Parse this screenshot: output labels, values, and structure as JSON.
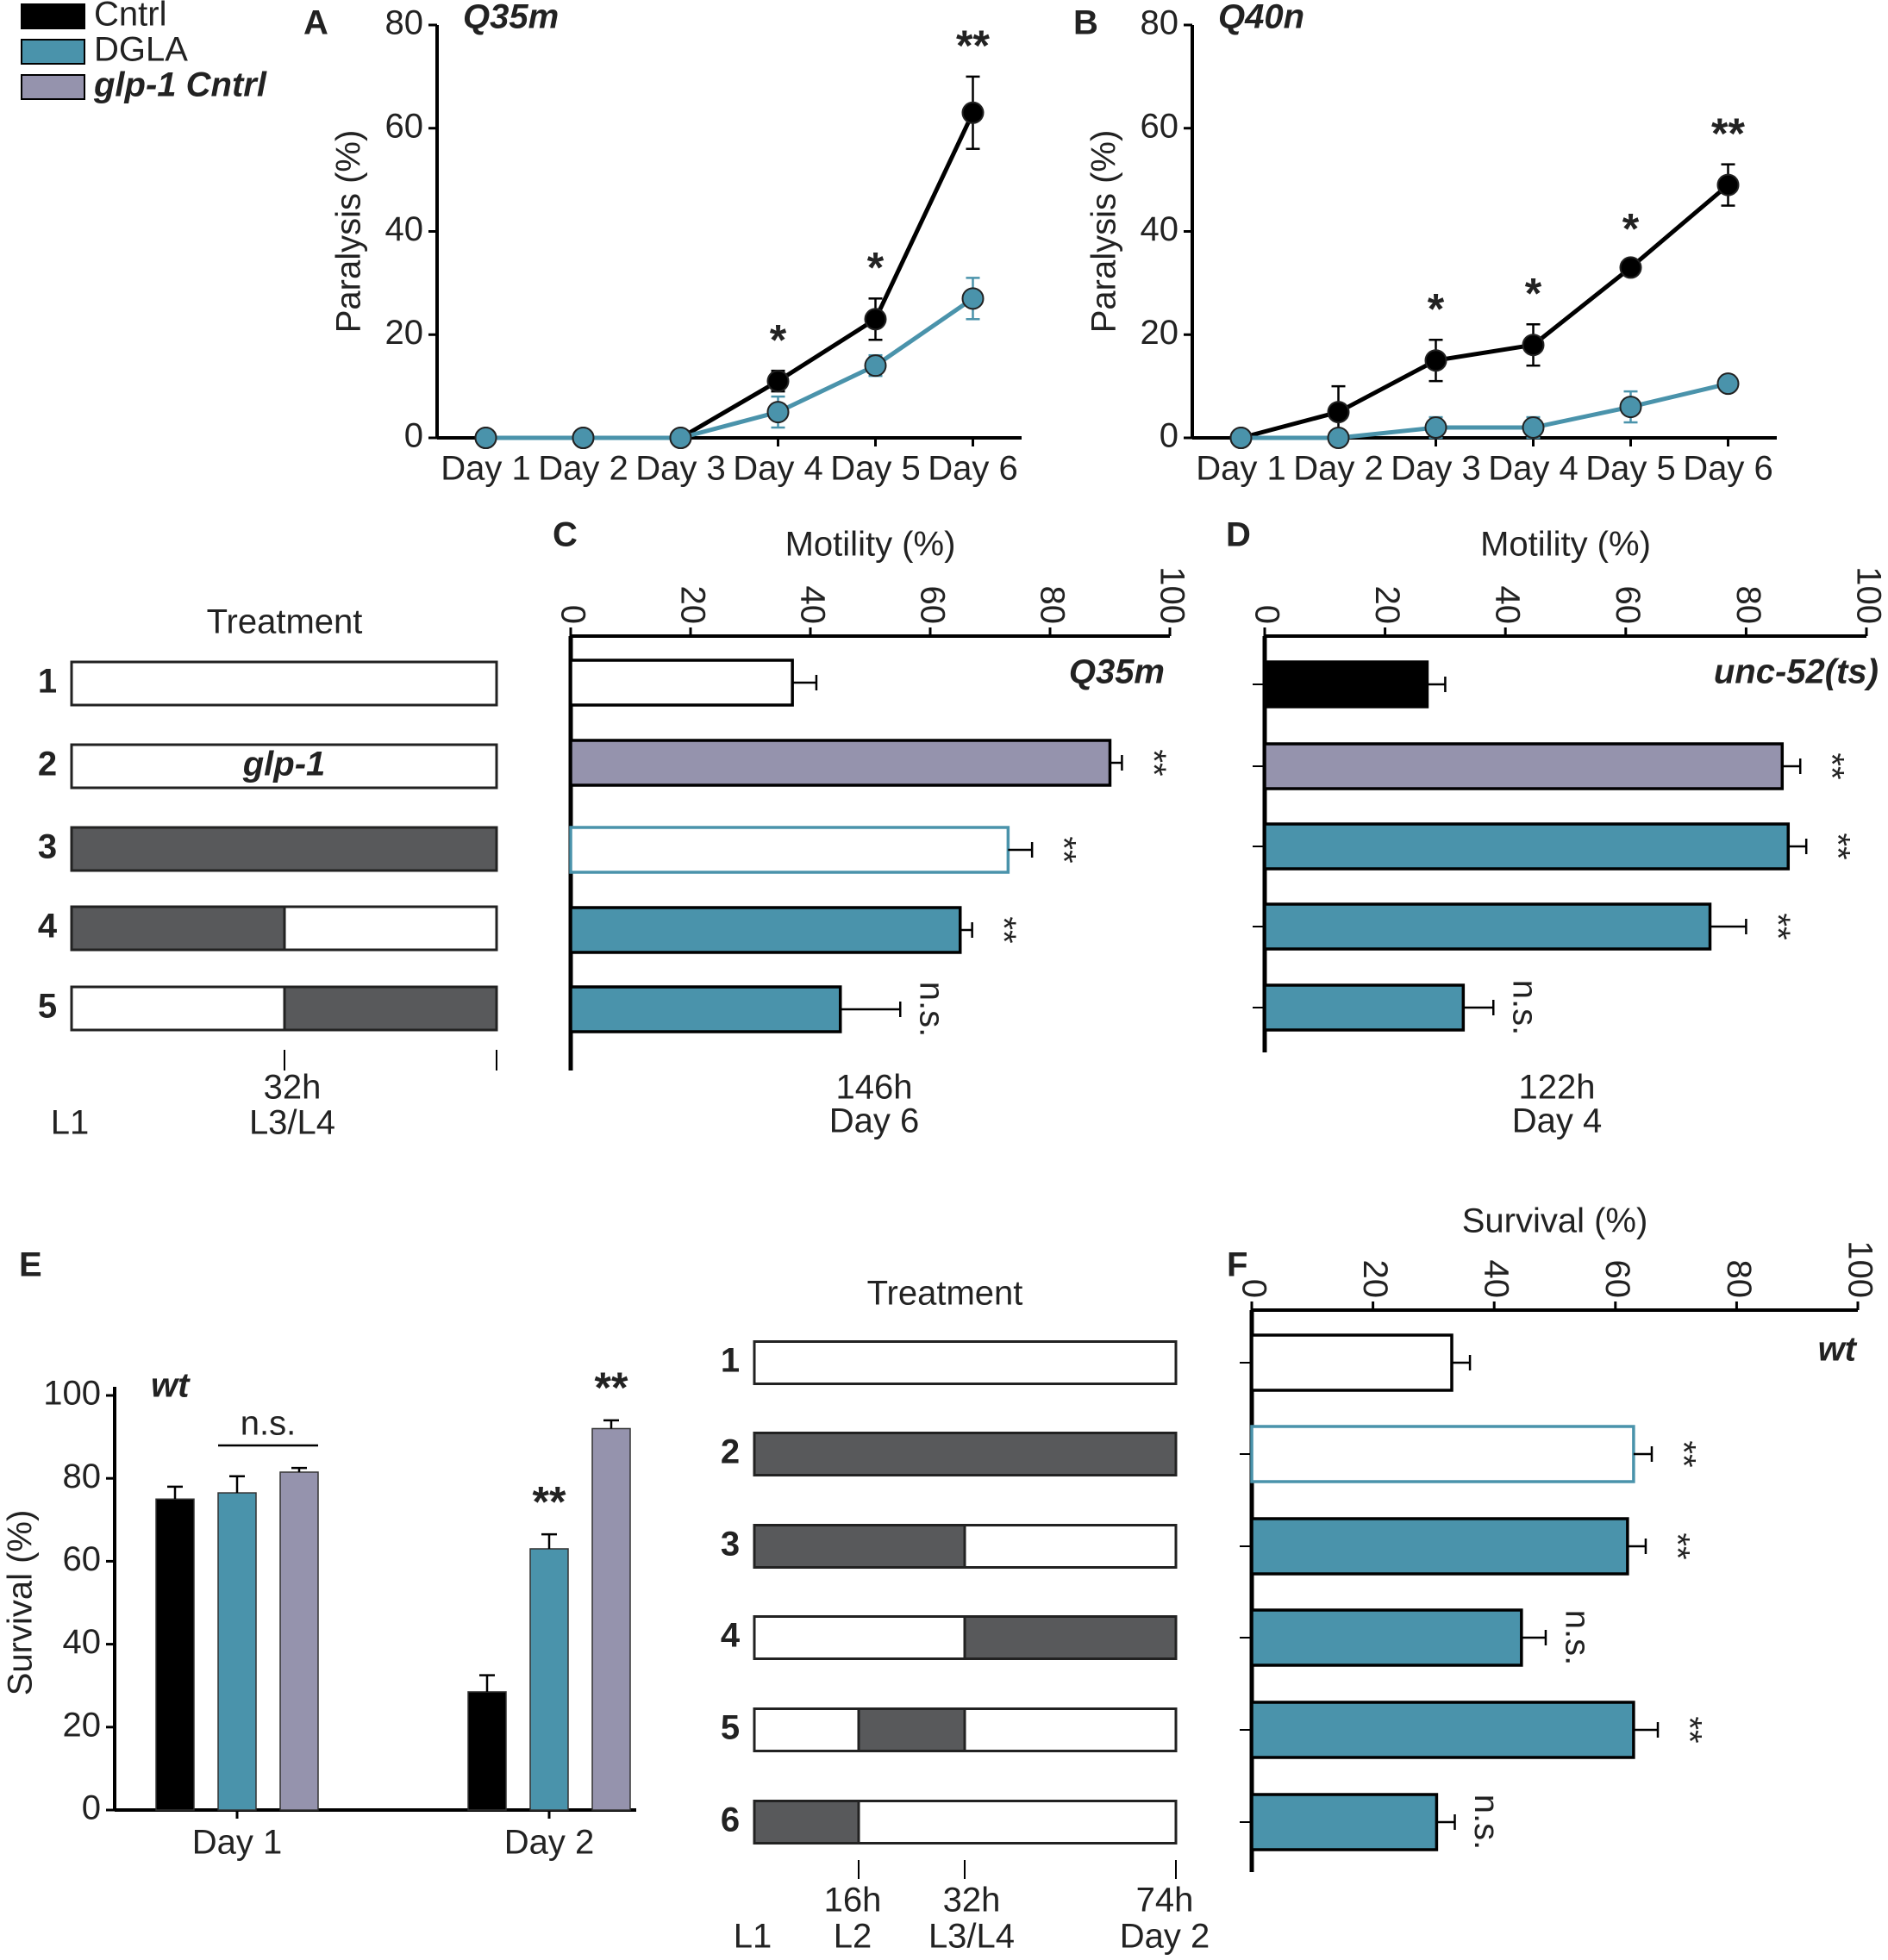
{
  "chart_data": [
    {
      "type": "line",
      "panel": "A",
      "title": "Q35m",
      "ylabel": "Paralysis (%)",
      "categories": [
        "Day 1",
        "Day 2",
        "Day 3",
        "Day 4",
        "Day 5",
        "Day 6"
      ],
      "series": [
        {
          "name": "Cntrl",
          "color": "#000000",
          "values": [
            0,
            0,
            0,
            11,
            23,
            63
          ],
          "errors": [
            0,
            0,
            0,
            2,
            4,
            7
          ],
          "significance": [
            null,
            null,
            null,
            "*",
            "*",
            "**"
          ]
        },
        {
          "name": "DGLA",
          "color": "#4a93ab",
          "values": [
            0,
            0,
            0,
            5,
            14,
            27
          ],
          "errors": [
            0,
            0,
            0,
            3,
            2,
            4
          ]
        }
      ],
      "ylim": [
        0,
        80
      ],
      "yticks": [
        0,
        20,
        40,
        60,
        80
      ]
    },
    {
      "type": "line",
      "panel": "B",
      "title": "Q40n",
      "ylabel": "Paralysis (%)",
      "categories": [
        "Day 1",
        "Day 2",
        "Day 3",
        "Day 4",
        "Day 5",
        "Day 6"
      ],
      "series": [
        {
          "name": "Cntrl",
          "color": "#000000",
          "values": [
            0,
            5,
            15,
            18,
            33,
            49
          ],
          "errors": [
            0,
            5,
            4,
            4,
            1.5,
            4
          ],
          "significance": [
            null,
            null,
            "*",
            "*",
            "*",
            "**"
          ]
        },
        {
          "name": "DGLA",
          "color": "#4a93ab",
          "values": [
            0,
            0,
            2,
            2,
            6,
            10.5
          ],
          "errors": [
            0,
            0,
            2,
            2,
            3,
            1
          ]
        }
      ],
      "ylim": [
        0,
        80
      ],
      "yticks": [
        0,
        20,
        40,
        60,
        80
      ]
    },
    {
      "type": "hbar",
      "panel": "C",
      "xlabel": "Motility (%)",
      "label": "Q35m",
      "values": [
        37,
        90,
        73,
        65,
        45
      ],
      "errors": [
        4,
        2,
        4,
        2,
        10
      ],
      "fills": [
        "#ffffff",
        "#9593ad",
        "#ffffff",
        "#4a93ab",
        "#4a93ab"
      ],
      "strokes": [
        "#000000",
        "#000000",
        "#4a93ab",
        "#000000",
        "#000000"
      ],
      "significance": [
        null,
        "**",
        "**",
        "**",
        "n.s."
      ],
      "xlim": [
        0,
        100
      ],
      "xticks": [
        0,
        20,
        40,
        60,
        80,
        100
      ],
      "footer": [
        "146h",
        "Day 6"
      ]
    },
    {
      "type": "hbar",
      "panel": "D",
      "xlabel": "Motility (%)",
      "label": "unc-52(ts)",
      "values": [
        27,
        86,
        87,
        74,
        33
      ],
      "errors": [
        3,
        3,
        3,
        6,
        5
      ],
      "fills": [
        "#000000",
        "#9593ad",
        "#4a93ab",
        "#4a93ab",
        "#4a93ab"
      ],
      "strokes": [
        "#000000",
        "#000000",
        "#000000",
        "#000000",
        "#000000"
      ],
      "significance": [
        null,
        "**",
        "**",
        "**",
        "n.s."
      ],
      "xlim": [
        0,
        100
      ],
      "xticks": [
        0,
        20,
        40,
        60,
        80,
        100
      ],
      "footer": [
        "122h",
        "Day 4"
      ]
    },
    {
      "type": "groupbar",
      "panel": "E",
      "title": "wt",
      "ylabel": "Survival (%)",
      "categories": [
        "Day 1",
        "Day 2"
      ],
      "series": [
        {
          "name": "Cntrl",
          "color": "#000000",
          "values": [
            75,
            28.5
          ],
          "errors": [
            3,
            4
          ]
        },
        {
          "name": "DGLA",
          "color": "#4a93ab",
          "values": [
            76.5,
            63
          ],
          "errors": [
            4,
            3.5
          ],
          "significance": [
            null,
            "**"
          ]
        },
        {
          "name": "glp-1 Cntrl",
          "color": "#9593ad",
          "values": [
            81.5,
            92
          ],
          "errors": [
            1,
            2
          ],
          "significance": [
            null,
            "**"
          ]
        }
      ],
      "group_labels": [
        "n.s.",
        null
      ],
      "ylim": [
        0,
        100
      ],
      "yticks": [
        0,
        20,
        40,
        60,
        80,
        100
      ]
    },
    {
      "type": "hbar",
      "panel": "F",
      "xlabel": "Survival (%)",
      "label": "wt",
      "values": [
        33,
        63,
        62,
        44.5,
        63,
        30.5
      ],
      "errors": [
        3,
        3,
        3,
        4,
        4,
        3
      ],
      "fills": [
        "#ffffff",
        "#ffffff",
        "#4a93ab",
        "#4a93ab",
        "#4a93ab",
        "#4a93ab"
      ],
      "strokes": [
        "#000000",
        "#4a93ab",
        "#000000",
        "#000000",
        "#000000",
        "#000000"
      ],
      "significance": [
        null,
        "**",
        "**",
        "n.s.",
        "**",
        "n.s."
      ],
      "xlim": [
        0,
        100
      ],
      "xticks": [
        0,
        20,
        40,
        60,
        80,
        100
      ]
    }
  ],
  "treatment_top": {
    "title": "Treatment",
    "start_stage": "L1",
    "timeline": [
      {
        "time": "32h",
        "stage": "L3/L4"
      }
    ],
    "rows": [
      {
        "number": "1",
        "segments": [
          "#ffffff"
        ]
      },
      {
        "number": "2",
        "text": "glp-1",
        "segments": [
          "#ffffff"
        ]
      },
      {
        "number": "3",
        "segments": [
          "#58595b"
        ]
      },
      {
        "number": "4",
        "segments": [
          "#58595b",
          "#ffffff"
        ]
      },
      {
        "number": "5",
        "segments": [
          "#ffffff",
          "#58595b"
        ]
      }
    ]
  },
  "treatment_bottom": {
    "title": "Treatment",
    "start_stage": "L1",
    "timeline": [
      {
        "time": "16h",
        "stage": "L2"
      },
      {
        "time": "32h",
        "stage": "L3/L4"
      },
      {
        "time": "74h",
        "stage": "Day 2"
      }
    ],
    "rows": [
      {
        "number": "1",
        "segments": [
          "#ffffff",
          "#ffffff",
          "#ffffff"
        ]
      },
      {
        "number": "2",
        "segments": [
          "#58595b",
          "#58595b",
          "#58595b"
        ]
      },
      {
        "number": "3",
        "segments": [
          "#58595b",
          "#58595b",
          "#ffffff"
        ]
      },
      {
        "number": "4",
        "segments": [
          "#ffffff",
          "#ffffff",
          "#58595b"
        ]
      },
      {
        "number": "5",
        "segments": [
          "#ffffff",
          "#58595b",
          "#ffffff"
        ]
      },
      {
        "number": "6",
        "segments": [
          "#58595b",
          "#ffffff",
          "#ffffff"
        ]
      }
    ]
  }
}
